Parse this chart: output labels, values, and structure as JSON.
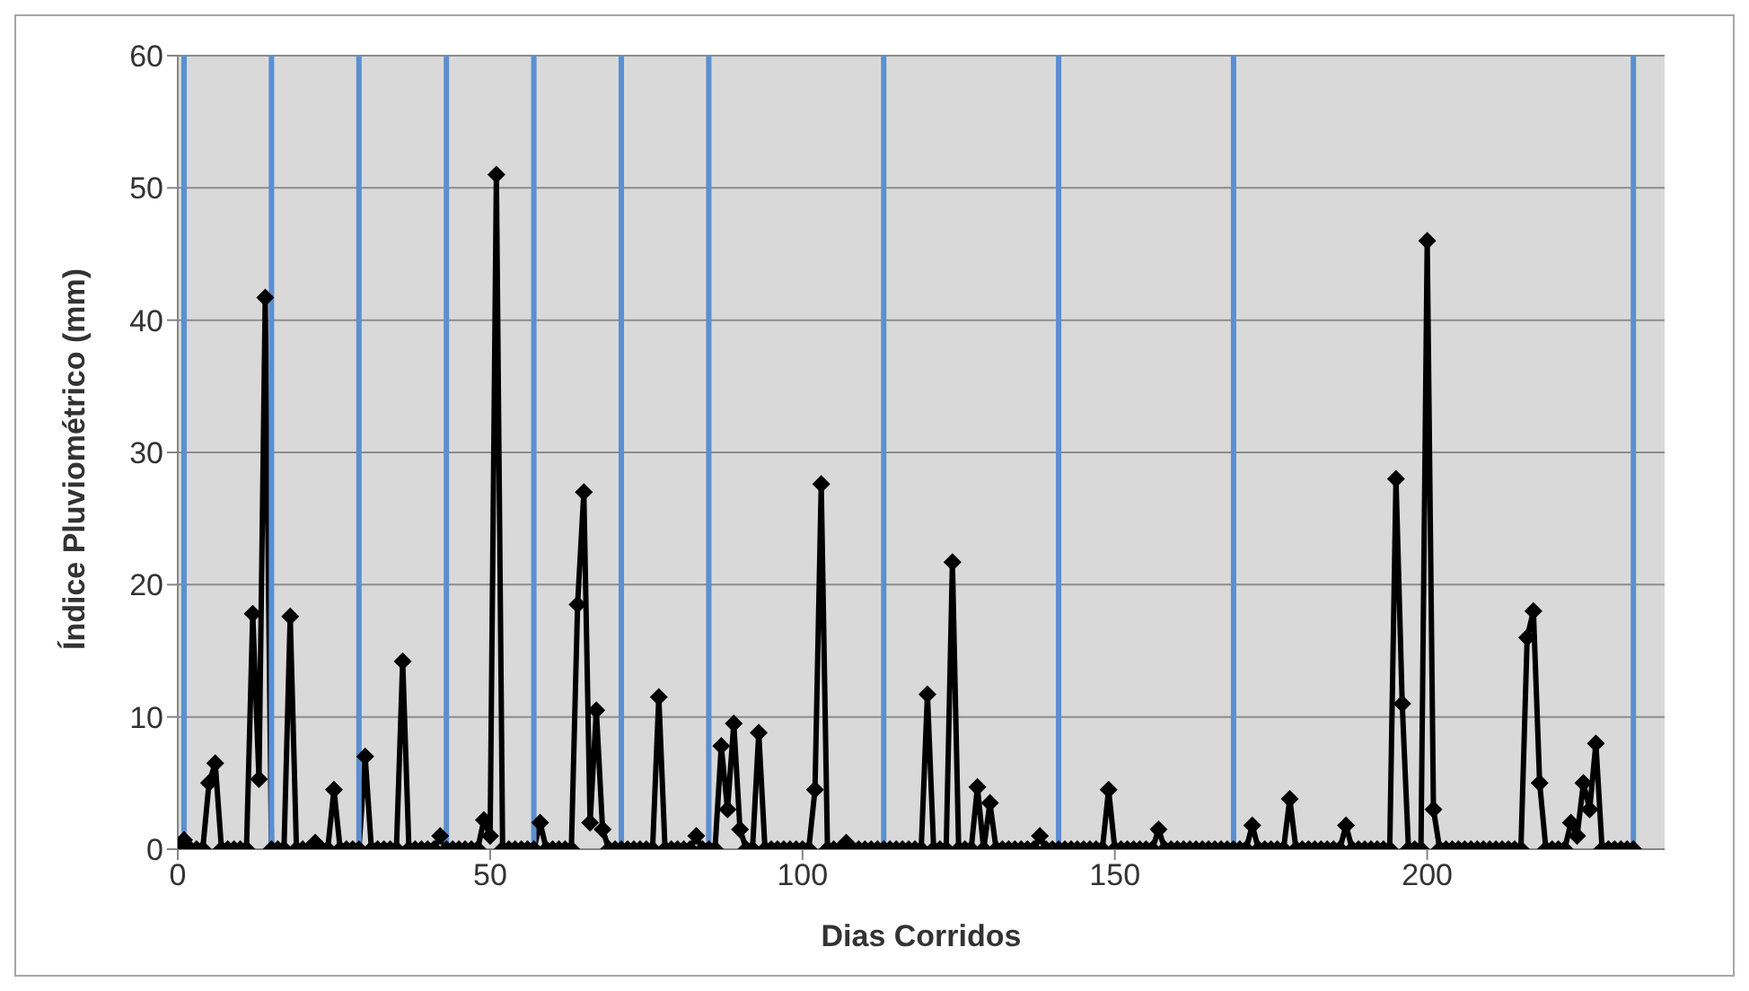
{
  "chart_data": {
    "type": "line",
    "xlabel": "Dias Corridos",
    "ylabel": "Índice Pluviométrico (mm)",
    "x": [
      0,
      1,
      2,
      3,
      4,
      5,
      6,
      7,
      8,
      9,
      10,
      11,
      12,
      13,
      14,
      15,
      16,
      17,
      18,
      19,
      20,
      21,
      22,
      23,
      24,
      25,
      26,
      27,
      28,
      29,
      30,
      31,
      32,
      33,
      34,
      35,
      36,
      37,
      38,
      39,
      40,
      41,
      42,
      43,
      44,
      45,
      46,
      47,
      48,
      49,
      50,
      51,
      52,
      53,
      54,
      55,
      56,
      57,
      58,
      59,
      60,
      61,
      62,
      63,
      64,
      65,
      66,
      67,
      68,
      69,
      70,
      71,
      72,
      73,
      74,
      75,
      76,
      77,
      78,
      79,
      80,
      81,
      82,
      83,
      84,
      85,
      86,
      87,
      88,
      89,
      90,
      91,
      92,
      93,
      94,
      95,
      96,
      97,
      98,
      99,
      100,
      101,
      102,
      103,
      104,
      105,
      106,
      107,
      108,
      109,
      110,
      111,
      112,
      113,
      114,
      115,
      116,
      117,
      118,
      119,
      120,
      121,
      122,
      123,
      124,
      125,
      126,
      127,
      128,
      129,
      130,
      131,
      132,
      133,
      134,
      135,
      136,
      137,
      138,
      139,
      140,
      141,
      142,
      143,
      144,
      145,
      146,
      147,
      148,
      149,
      150,
      151,
      152,
      153,
      154,
      155,
      156,
      157,
      158,
      159,
      160,
      161,
      162,
      163,
      164,
      165,
      166,
      167,
      168,
      169,
      170,
      171,
      172,
      173,
      174,
      175,
      176,
      177,
      178,
      179,
      180,
      181,
      182,
      183,
      184,
      185,
      186,
      187,
      188,
      189,
      190,
      191,
      192,
      193,
      194,
      195,
      196,
      197,
      198,
      199,
      200,
      201,
      202,
      203,
      204,
      205,
      206,
      207,
      208,
      209,
      210,
      211,
      212,
      213,
      214,
      215,
      216,
      217,
      218,
      219,
      220,
      221,
      222,
      223,
      224,
      225,
      226,
      227,
      228,
      229,
      230,
      231,
      232,
      233
    ],
    "series": [
      {
        "color": "#000000",
        "values": [
          0,
          0.7,
          0,
          0,
          0,
          5,
          6.5,
          0,
          0,
          0,
          0,
          0,
          17.8,
          5.3,
          41.7,
          0,
          0,
          0,
          17.6,
          0,
          0,
          0,
          0.5,
          0,
          0,
          4.5,
          0,
          0,
          0,
          0,
          7,
          0,
          0,
          0,
          0,
          0,
          14.2,
          0,
          0,
          0,
          0,
          0,
          1,
          0,
          0,
          0,
          0,
          0,
          0,
          2.2,
          1,
          51,
          0,
          0,
          0,
          0,
          0,
          0,
          2,
          0,
          0,
          0,
          0,
          0,
          18.5,
          27,
          2,
          10.5,
          1.5,
          0,
          0,
          0,
          0,
          0,
          0,
          0,
          0,
          11.5,
          0,
          0,
          0,
          0,
          0,
          1,
          0,
          0,
          0,
          7.8,
          3,
          9.5,
          1.5,
          0,
          0,
          8.8,
          0,
          0,
          0,
          0,
          0,
          0,
          0,
          0,
          4.5,
          27.6,
          0,
          0,
          0,
          0.5,
          0,
          0,
          0,
          0,
          0,
          0,
          0,
          0,
          0,
          0,
          0,
          0,
          11.7,
          0,
          0,
          0,
          21.7,
          0,
          0,
          0,
          4.7,
          0,
          3.5,
          0,
          0,
          0,
          0,
          0,
          0,
          0,
          1,
          0,
          0,
          0,
          0,
          0,
          0,
          0,
          0,
          0,
          0,
          4.5,
          0,
          0,
          0,
          0,
          0,
          0,
          0,
          1.5,
          0,
          0,
          0,
          0,
          0,
          0,
          0,
          0,
          0,
          0,
          0,
          0,
          0,
          0,
          1.8,
          0,
          0,
          0,
          0,
          0,
          3.8,
          0,
          0,
          0,
          0,
          0,
          0,
          0,
          0,
          1.8,
          0,
          0,
          0,
          0,
          0,
          0,
          0,
          28,
          11,
          0,
          0,
          0,
          46,
          3,
          0,
          0,
          0,
          0,
          0,
          0,
          0,
          0,
          0,
          0,
          0,
          0,
          0,
          0,
          16,
          18,
          5,
          0,
          0,
          0,
          0,
          2,
          1,
          5,
          3,
          8,
          0,
          0,
          0,
          0,
          0,
          0
        ]
      }
    ],
    "xlim": [
      0,
      238
    ],
    "xticks": [
      0,
      50,
      100,
      150,
      200
    ],
    "ylim": [
      0,
      60
    ],
    "yticks": [
      0,
      10,
      20,
      30,
      40,
      50,
      60
    ],
    "grid": "y",
    "legend": false,
    "marker": "diamond",
    "line_style": "solid",
    "ref_lines": [
      {
        "axis": "x",
        "value": 1,
        "color": "#5b8fd0"
      },
      {
        "axis": "x",
        "value": 15,
        "color": "#5b8fd0"
      },
      {
        "axis": "x",
        "value": 29,
        "color": "#5b8fd0"
      },
      {
        "axis": "x",
        "value": 43,
        "color": "#5b8fd0"
      },
      {
        "axis": "x",
        "value": 57,
        "color": "#5b8fd0"
      },
      {
        "axis": "x",
        "value": 71,
        "color": "#5b8fd0"
      },
      {
        "axis": "x",
        "value": 85,
        "color": "#5b8fd0"
      },
      {
        "axis": "x",
        "value": 113,
        "color": "#5b8fd0"
      },
      {
        "axis": "x",
        "value": 141,
        "color": "#5b8fd0"
      },
      {
        "axis": "x",
        "value": 169,
        "color": "#5b8fd0"
      },
      {
        "axis": "x",
        "value": 233,
        "color": "#5b8fd0"
      }
    ]
  }
}
